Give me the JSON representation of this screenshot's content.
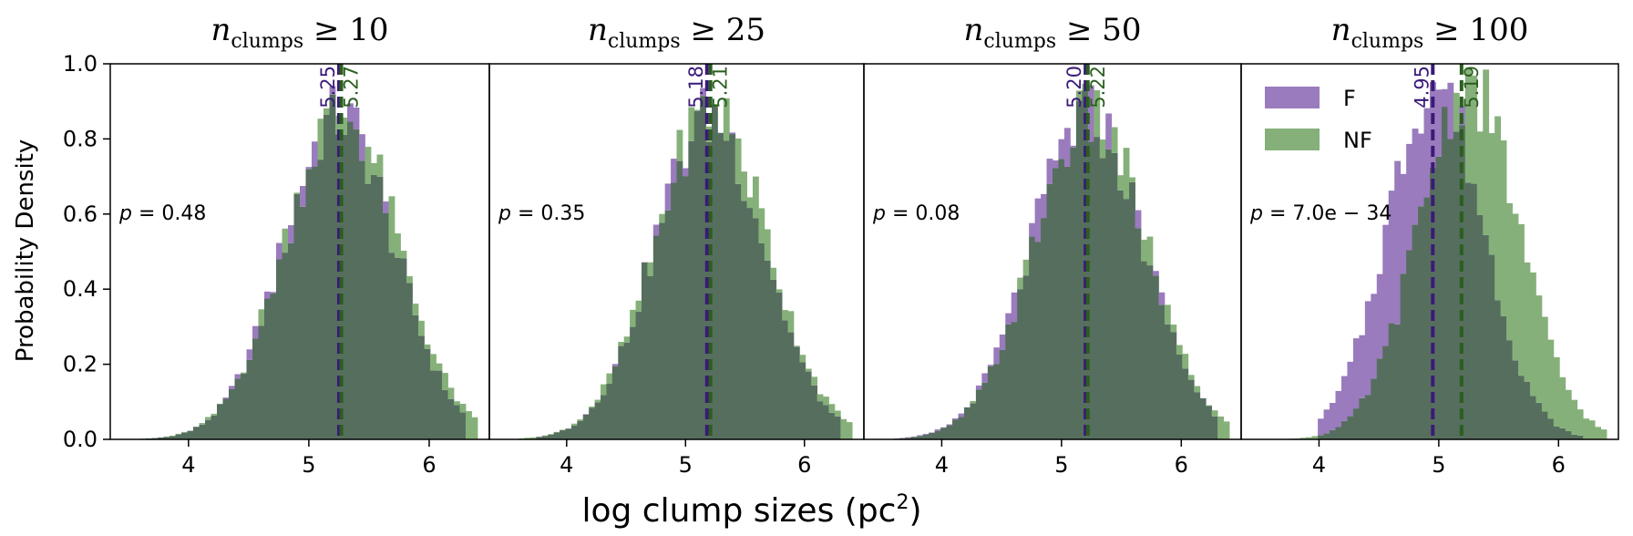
{
  "chart_data": {
    "type": "bar",
    "subtype": "overlaid-histogram",
    "xlabel": "log clump sizes (pc",
    "xlabel_sup": "2",
    "xlabel_close": ")",
    "ylabel": "Probability Density",
    "ylim": [
      0,
      1.0
    ],
    "xlim": [
      3.35,
      6.5
    ],
    "xticks": [
      4,
      5,
      6
    ],
    "yticks": [
      0.0,
      0.2,
      0.4,
      0.6,
      0.8,
      1.0
    ],
    "ytick_labels": [
      "0.0",
      "0.2",
      "0.4",
      "0.6",
      "0.8",
      "1.0"
    ],
    "xtick_labels": [
      "4",
      "5",
      "6"
    ],
    "legend": {
      "position": "top-left of last panel",
      "entries": [
        {
          "label": "F",
          "color": "#9a7bbd"
        },
        {
          "label": "NF",
          "color": "#86b07a"
        }
      ]
    },
    "colors": {
      "F": "#9a7bbd",
      "NF": "#86b07a",
      "overlap": "#566e5e",
      "F_line": "#3a1a78",
      "NF_line": "#2a5e1e"
    },
    "panels": [
      {
        "title_var": "n",
        "title_sub": "clumps",
        "title_rel": " ≥ 10",
        "p_label": "p",
        "p_value": " = 0.48",
        "F": {
          "median_label": "5.25",
          "median": 5.25,
          "mean": 5.25,
          "sd": 0.46,
          "peak": 0.86,
          "skew": 0.0,
          "x_start": 3.62,
          "x_end": 6.3
        },
        "NF": {
          "median_label": "5.27",
          "median": 5.27,
          "mean": 5.27,
          "sd": 0.47,
          "peak": 0.87,
          "skew": 0.0,
          "x_start": 3.6,
          "x_end": 6.42
        }
      },
      {
        "title_var": "n",
        "title_sub": "clumps",
        "title_rel": " ≥ 25",
        "p_label": "p",
        "p_value": " = 0.35",
        "F": {
          "median_label": "5.18",
          "median": 5.18,
          "mean": 5.2,
          "sd": 0.46,
          "peak": 0.86,
          "skew": 0.0,
          "x_start": 3.75,
          "x_end": 6.3
        },
        "NF": {
          "median_label": "5.21",
          "median": 5.21,
          "mean": 5.22,
          "sd": 0.47,
          "peak": 0.88,
          "skew": 0.0,
          "x_start": 3.6,
          "x_end": 6.42
        }
      },
      {
        "title_var": "n",
        "title_sub": "clumps",
        "title_rel": " ≥ 50",
        "p_label": "p",
        "p_value": " = 0.08",
        "F": {
          "median_label": "5.20",
          "median": 5.2,
          "mean": 5.22,
          "sd": 0.47,
          "peak": 0.86,
          "skew": 0.0,
          "x_start": 3.62,
          "x_end": 6.3
        },
        "NF": {
          "median_label": "5.22",
          "median": 5.22,
          "mean": 5.24,
          "sd": 0.47,
          "peak": 0.86,
          "skew": 0.0,
          "x_start": 3.6,
          "x_end": 6.42
        }
      },
      {
        "title_var": "n",
        "title_sub": "clumps",
        "title_rel": " ≥ 100",
        "p_label": "p",
        "p_value": " = 7.0e − 34",
        "F": {
          "median_label": "4.95",
          "median": 4.95,
          "mean": 4.97,
          "sd": 0.4,
          "peak": 0.95,
          "skew": 0.0,
          "x_start": 4.0,
          "x_end": 6.2
        },
        "NF": {
          "median_label": "5.19",
          "median": 5.19,
          "mean": 5.25,
          "sd": 0.42,
          "peak": 0.94,
          "skew": 0.0,
          "x_start": 3.6,
          "x_end": 6.42
        }
      }
    ]
  }
}
